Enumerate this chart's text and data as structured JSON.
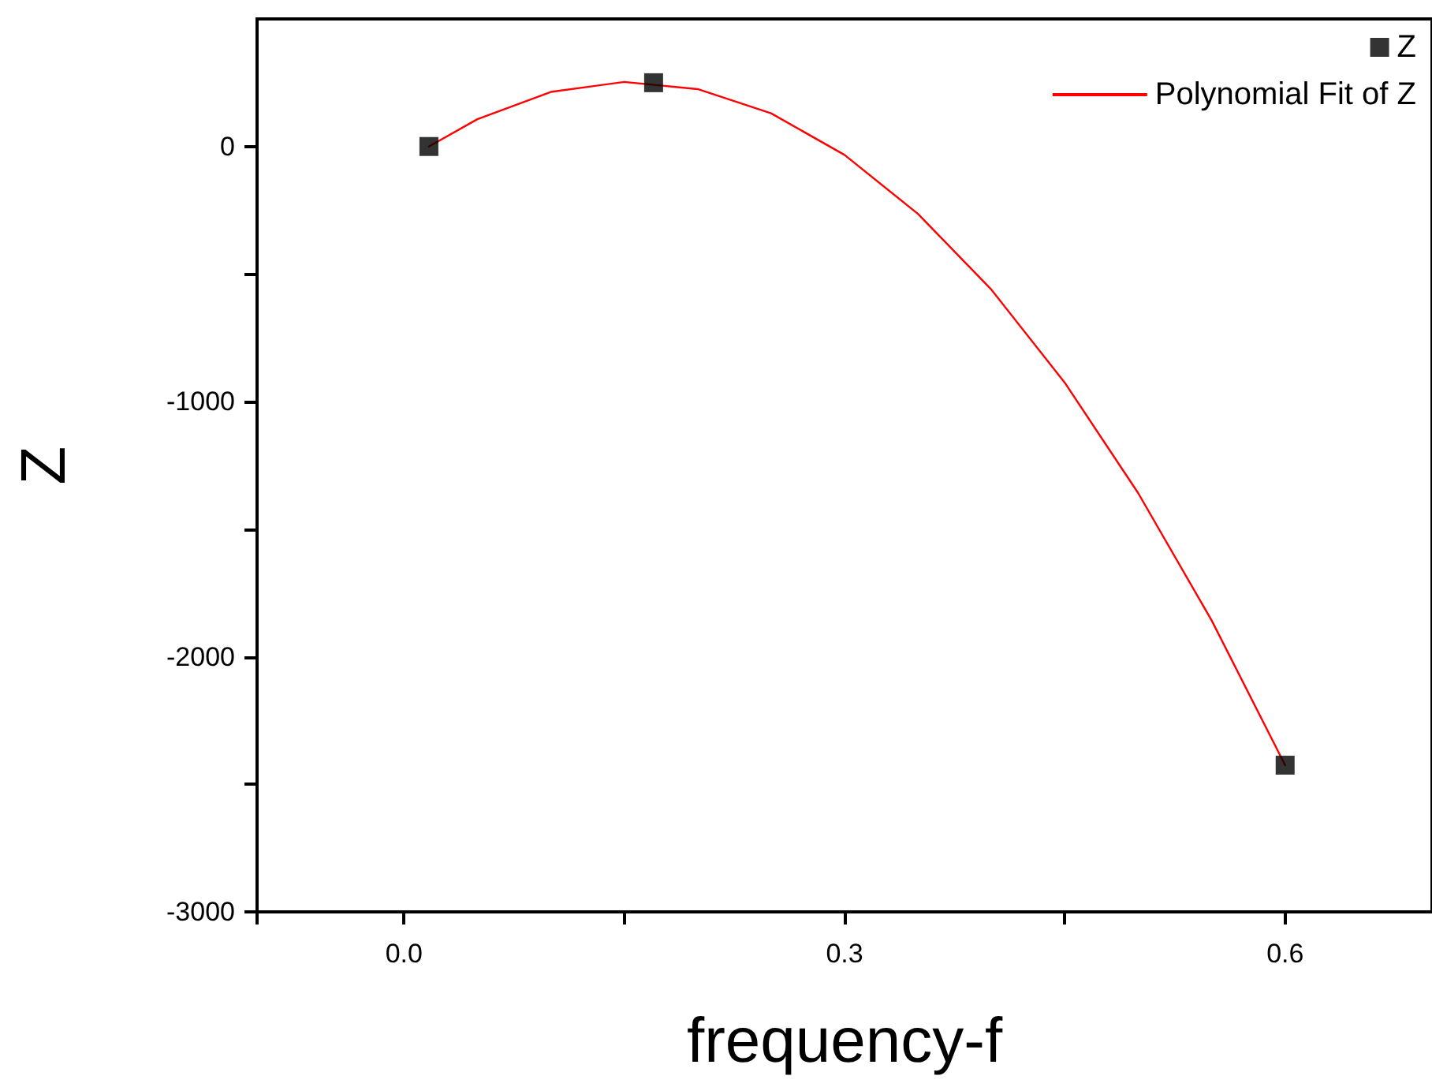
{
  "chart_data": {
    "type": "scatter",
    "xlabel": "frequency-f",
    "ylabel": "Z",
    "xlim": [
      -0.1,
      0.7
    ],
    "xticks": [
      {
        "value": -0.1,
        "label": null
      },
      {
        "value": 0,
        "label": "0.0"
      },
      {
        "value": 0.15,
        "label": null
      },
      0.3,
      {
        "value": 0.45,
        "label": null
      },
      0.6
    ],
    "ylim": [
      -3000,
      500
    ],
    "yticks": [
      -3000,
      {
        "value": -2500,
        "label": null
      },
      -2000,
      {
        "value": -1500,
        "label": null
      },
      -1000,
      {
        "value": -500,
        "label": null
      },
      0
    ],
    "legend": "top right",
    "series": [
      {
        "name": "Z",
        "marker": "square",
        "color": "#000000",
        "x": [
          0.017,
          0.17,
          0.6
        ],
        "values": [
          0,
          250,
          -2425
        ]
      },
      {
        "name": "Polynomial Fit of Z",
        "type": "line",
        "marker": "none",
        "line_style": "solid",
        "color": "#ff0000",
        "x": [
          0.017,
          0.05,
          0.1,
          0.15,
          0.2,
          0.25,
          0.3,
          0.35,
          0.4,
          0.45,
          0.5,
          0.55,
          0.6
        ],
        "values": [
          0,
          107,
          214,
          253,
          225,
          130,
          -33,
          -264,
          -561,
          -926,
          -1359,
          -1858,
          -2425
        ]
      }
    ]
  }
}
